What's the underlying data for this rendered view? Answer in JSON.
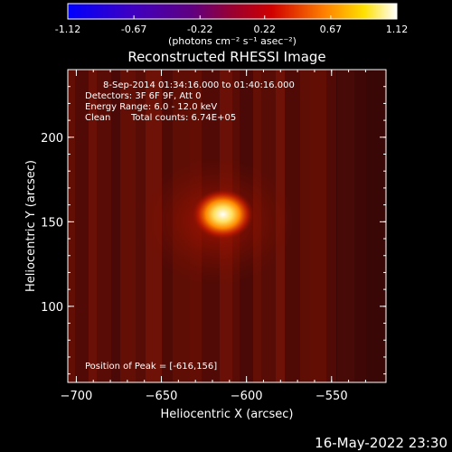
{
  "chart_data": {
    "type": "heatmap",
    "title": "Reconstructed RHESSI Image",
    "xlabel": "Heliocentric X (arcsec)",
    "ylabel": "Heliocentric Y (arcsec)",
    "xlim": [
      -705,
      -518
    ],
    "ylim": [
      55,
      240
    ],
    "xticks": [
      -700,
      -650,
      -600,
      -550
    ],
    "yticks": [
      100,
      150,
      200
    ],
    "colorbar": {
      "ticks": [
        -1.12,
        -0.67,
        -0.22,
        0.22,
        0.67,
        1.12
      ],
      "label": "(photons cm⁻² s⁻¹ asec⁻²)",
      "range": [
        -1.12,
        1.12
      ],
      "colormap": "blue-purple-red-yellow-white"
    },
    "annotations": {
      "time_range": "8-Sep-2014 01:34:16.000 to 01:40:16.000",
      "detectors": "Detectors: 3F 6F 9F, Att 0",
      "energy": "Energy Range: 6.0 - 12.0 keV",
      "clean": "Clean",
      "total_counts": "Total counts: 6.74E+05",
      "peak_text": "Position of Peak = [-616,156]"
    },
    "peak": {
      "x": -616,
      "y": 156,
      "value": 1.12
    },
    "background_level": 0.18,
    "date_stamp": "16-May-2022 23:30"
  }
}
